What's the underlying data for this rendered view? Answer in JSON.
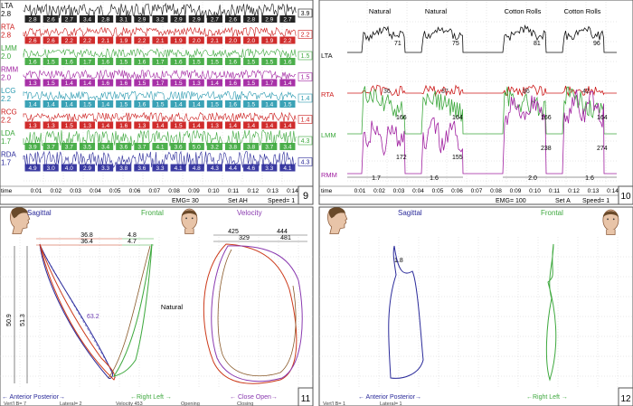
{
  "panel_numbers": [
    "9",
    "10",
    "11",
    "12"
  ],
  "panel9": {
    "channels": [
      {
        "label": "LTA",
        "value": "2.8",
        "right": "3.9",
        "color": "#111111",
        "cells": [
          "2.8",
          "2.6",
          "2.7",
          "3.4",
          "2.8",
          "3.1",
          "2.9",
          "3.2",
          "2.9",
          "2.9",
          "2.7",
          "2.6",
          "2.8",
          "2.9",
          "2.7"
        ]
      },
      {
        "label": "RTA",
        "value": "2.8",
        "right": "2.2",
        "color": "#cc1a1a",
        "cells": [
          "2.6",
          "2.6",
          "2.2",
          "2.2",
          "2.1",
          "1.9",
          "2.2",
          "2.1",
          "1.9",
          "2.0",
          "2.1",
          "2.0",
          "2.0",
          "1.9",
          "2.2"
        ]
      },
      {
        "label": "LMM",
        "value": "2.0",
        "right": "1.5",
        "color": "#3da83d",
        "cells": [
          "1.6",
          "1.5",
          "1.6",
          "1.7",
          "1.6",
          "1.5",
          "1.6",
          "1.7",
          "1.6",
          "1.5",
          "1.5",
          "1.6",
          "1.5",
          "1.5",
          "1.6"
        ]
      },
      {
        "label": "RMM",
        "value": "2.0",
        "right": "1.5",
        "color": "#a020a0",
        "cells": [
          "1.3",
          "1.5",
          "1.4",
          "1.4",
          "1.6",
          "1.6",
          "1.5",
          "1.7",
          "1.5",
          "1.3",
          "1.4",
          "1.6",
          "1.5",
          "1.7",
          "1.4"
        ]
      },
      {
        "label": "LCG",
        "value": "2.2",
        "right": "1.4",
        "color": "#2a9ab0",
        "cells": [
          "1.4",
          "1.4",
          "1.4",
          "1.5",
          "1.4",
          "1.5",
          "1.6",
          "1.5",
          "1.4",
          "1.4",
          "1.5",
          "1.6",
          "1.5",
          "1.4",
          "1.5"
        ]
      },
      {
        "label": "RCG",
        "value": "2.2",
        "right": "1.4",
        "color": "#cc1a1a",
        "cells": [
          "1.3",
          "1.3",
          "1.5",
          "1.3",
          "1.4",
          "1.6",
          "1.3",
          "1.4",
          "1.5",
          "1.4",
          "1.3",
          "1.4",
          "1.4",
          "1.4",
          "1.4"
        ]
      },
      {
        "label": "LDA",
        "value": "1.7",
        "right": "4.3",
        "color": "#3da83d",
        "cells": [
          "3.9",
          "3.7",
          "3.7",
          "3.5",
          "3.4",
          "3.6",
          "3.7",
          "4.1",
          "3.6",
          "5.0",
          "3.2",
          "3.8",
          "3.8",
          "3.7",
          "3.4"
        ]
      },
      {
        "label": "RDA",
        "value": "1.7",
        "right": "4.3",
        "color": "#2a2a9a",
        "cells": [
          "4.9",
          "3.0",
          "4.0",
          "2.9",
          "3.3",
          "3.8",
          "3.6",
          "3.3",
          "4.1",
          "4.8",
          "4.3",
          "4.4",
          "4.6",
          "3.3",
          "4.1"
        ]
      }
    ],
    "time_label": "time",
    "time_ticks": [
      "0:01",
      "0:02",
      "0:03",
      "0:04",
      "0:05",
      "0:06",
      "0:07",
      "0:08",
      "0:09",
      "0:10",
      "0:11",
      "0:12",
      "0:13",
      "0:14"
    ],
    "status": [
      "EMG= 30",
      "Set AH",
      "Speed= 1"
    ]
  },
  "panel10": {
    "annotations": [
      "Natural",
      "Natural",
      "Cotton Rolls",
      "Cotton Rolls"
    ],
    "lta_label": "LTA",
    "lta_values": [
      "71",
      "75",
      "81",
      "96"
    ],
    "rta_label": "RTA",
    "rta_values": [
      "36",
      "37",
      "36",
      "42"
    ],
    "lmm_label": "LMM",
    "lmm_values": [
      "166",
      "164",
      "166",
      "164"
    ],
    "rmm_label": "RMM",
    "rmm_values": [
      "172",
      "155",
      "238",
      "274"
    ],
    "intervals": [
      "1.7",
      "1.6",
      "2.0",
      "1.6"
    ],
    "time_label": "time",
    "time_ticks": [
      "0:01",
      "0:02",
      "0:03",
      "0:04",
      "0:05",
      "0:06",
      "0:07",
      "0:08",
      "0:09",
      "0:10",
      "0:11",
      "0:12",
      "0:13",
      "0:14"
    ],
    "status": [
      "EMG= 100",
      "Set A",
      "Speed= 1"
    ]
  },
  "panel11": {
    "sagittal_label": "Sagittal",
    "frontal_label": "Frontal",
    "velocity_label": "Velocity",
    "natural_label": "Natural",
    "sagittal_values": [
      "36.8",
      "36.4"
    ],
    "frontal_values": [
      "4.8",
      "4.7"
    ],
    "vertical_values": [
      "50.9",
      "51.3"
    ],
    "diagonal_value": "63.2",
    "velocity_values": [
      "425",
      "444",
      "329",
      "481"
    ],
    "axis_sagittal": "← Anterior  Posterior→",
    "axis_frontal": "←Right  Left →",
    "axis_velocity": "← Close  Open→",
    "footer_text": [
      "Vert'l B= 7",
      "Lateral= 2",
      "Velocity 453",
      "Opening",
      "Closing"
    ]
  },
  "panel12": {
    "sagittal_label": "Sagittal",
    "frontal_label": "Frontal",
    "vertical_value": "1.8",
    "axis_sagittal": "← Anterior  Posterior→",
    "axis_frontal": "←Right  Left →",
    "footer_text": [
      "Vert'l B= 1",
      "Lateral= 1"
    ]
  },
  "colors": {
    "lta": "#111111",
    "rta": "#cc1a1a",
    "lmm": "#3da83d",
    "rmm": "#a020a0",
    "sagittal": "#2a2a9a",
    "frontal": "#3da83d",
    "closing": "#cc3a1a",
    "opening": "#8a3ab0"
  },
  "icons": [
    "head-profile-icon",
    "head-front-icon"
  ],
  "chart_data": [
    {
      "type": "line",
      "title": "",
      "series": [
        {
          "name": "LTA",
          "values": [
            2.8,
            2.6,
            2.7,
            3.4,
            2.8,
            3.1,
            2.9,
            3.2,
            2.9,
            2.9,
            2.7,
            2.6,
            2.8,
            2.9,
            2.7
          ]
        },
        {
          "name": "RTA",
          "values": [
            2.6,
            2.6,
            2.2,
            2.2,
            2.1,
            1.9,
            2.2,
            2.1,
            1.9,
            2.0,
            2.1,
            2.0,
            2.0,
            1.9,
            2.2
          ]
        },
        {
          "name": "LMM",
          "values": [
            1.6,
            1.5,
            1.6,
            1.7,
            1.6,
            1.5,
            1.6,
            1.7,
            1.6,
            1.5,
            1.5,
            1.6,
            1.5,
            1.5,
            1.6
          ]
        },
        {
          "name": "RMM",
          "values": [
            1.3,
            1.5,
            1.4,
            1.4,
            1.6,
            1.6,
            1.5,
            1.7,
            1.5,
            1.3,
            1.4,
            1.6,
            1.5,
            1.7,
            1.4
          ]
        },
        {
          "name": "LCG",
          "values": [
            1.4,
            1.4,
            1.4,
            1.5,
            1.4,
            1.5,
            1.6,
            1.5,
            1.4,
            1.4,
            1.5,
            1.6,
            1.5,
            1.4,
            1.5
          ]
        },
        {
          "name": "RCG",
          "values": [
            1.3,
            1.3,
            1.5,
            1.3,
            1.4,
            1.6,
            1.3,
            1.4,
            1.5,
            1.4,
            1.3,
            1.4,
            1.4,
            1.4,
            1.4
          ]
        },
        {
          "name": "LDA",
          "values": [
            3.9,
            3.7,
            3.7,
            3.5,
            3.4,
            3.6,
            3.7,
            4.1,
            3.6,
            5.0,
            3.2,
            3.8,
            3.8,
            3.7,
            3.4
          ]
        },
        {
          "name": "RDA",
          "values": [
            4.9,
            3.0,
            4.0,
            2.9,
            3.3,
            3.8,
            3.6,
            3.3,
            4.1,
            4.8,
            4.3,
            4.4,
            4.6,
            3.3,
            4.1
          ]
        }
      ]
    },
    {
      "type": "line",
      "title": "",
      "categories": [
        "Natural",
        "Natural",
        "Cotton Rolls",
        "Cotton Rolls"
      ],
      "series": [
        {
          "name": "LTA",
          "values": [
            71,
            75,
            81,
            96
          ]
        },
        {
          "name": "RTA",
          "values": [
            36,
            37,
            36,
            42
          ]
        },
        {
          "name": "LMM",
          "values": [
            166,
            164,
            166,
            164
          ]
        },
        {
          "name": "RMM",
          "values": [
            172,
            155,
            238,
            274
          ]
        }
      ],
      "intervals": [
        1.7,
        1.6,
        2.0,
        1.6
      ]
    },
    {
      "type": "line",
      "title": "",
      "sagittal": [
        36.8,
        36.4
      ],
      "frontal": [
        4.8,
        4.7
      ],
      "vertical": [
        50.9,
        51.3
      ],
      "velocity": [
        425,
        444,
        329,
        481
      ]
    },
    {
      "type": "line",
      "title": "",
      "vertical": [
        1.8
      ]
    }
  ]
}
